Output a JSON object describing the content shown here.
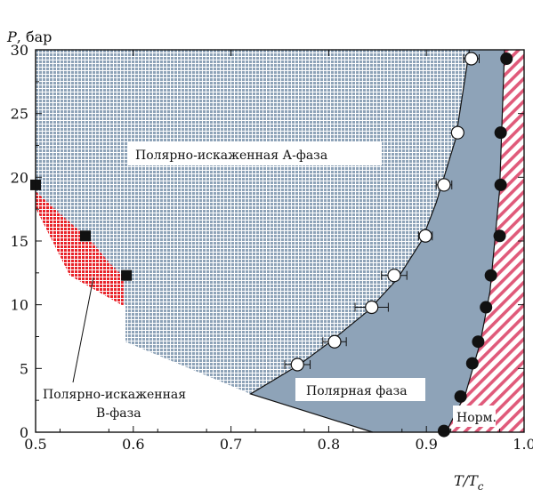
{
  "chart_data": {
    "type": "scatter",
    "axes": {
      "x_label": {
        "symbol": "T/T",
        "subscript": "c"
      },
      "y_label": {
        "symbol": "P",
        "unit": ", бар"
      },
      "xlim": [
        0.5,
        1.0
      ],
      "ylim": [
        0,
        30
      ],
      "x_ticks": [
        "0.5",
        "0.6",
        "0.7",
        "0.8",
        "0.9",
        "1.0"
      ],
      "y_ticks": [
        "0",
        "5",
        "10",
        "15",
        "20",
        "25",
        "30"
      ],
      "grid": false
    },
    "regions": [
      {
        "id": "polar-distorted-a",
        "label": "Полярно-искаженная А-фаза",
        "color": "#8ea3b8",
        "pattern": "grid",
        "boundary": [
          [
            0.5,
            30
          ],
          [
            0.944,
            30
          ],
          [
            0.93,
            23
          ],
          [
            0.91,
            18
          ],
          [
            0.895,
            15
          ],
          [
            0.87,
            12
          ],
          [
            0.84,
            9.5
          ],
          [
            0.8,
            7
          ],
          [
            0.77,
            5.3
          ],
          [
            0.72,
            3.0
          ],
          [
            0.592,
            7.1
          ],
          [
            0.592,
            10
          ],
          [
            0.54,
            12.5
          ],
          [
            0.5,
            17.7
          ]
        ]
      },
      {
        "id": "polar",
        "label": "Полярная фаза",
        "color": "#8ea3b8",
        "pattern": "solid",
        "boundary": [
          [
            0.944,
            30
          ],
          [
            0.93,
            23
          ],
          [
            0.91,
            18
          ],
          [
            0.895,
            15
          ],
          [
            0.87,
            12
          ],
          [
            0.84,
            9.5
          ],
          [
            0.8,
            7
          ],
          [
            0.77,
            5.3
          ],
          [
            0.72,
            3.0
          ],
          [
            0.845,
            0
          ],
          [
            0.92,
            0
          ],
          [
            0.94,
            3
          ],
          [
            0.955,
            7
          ],
          [
            0.965,
            11
          ],
          [
            0.975,
            19
          ],
          [
            0.98,
            30
          ]
        ]
      },
      {
        "id": "polar-distorted-b",
        "label": "Полярно-искаженная\nB-фаза",
        "label_lines": [
          "Полярно-искаженная",
          "B-фаза"
        ],
        "color": "#e8232a",
        "pattern": "crosshatch",
        "boundary": [
          [
            0.5,
            18.9
          ],
          [
            0.5,
            17.6
          ],
          [
            0.535,
            12.3
          ],
          [
            0.59,
            9.9
          ],
          [
            0.59,
            12.2
          ],
          [
            0.574,
            13.4
          ],
          [
            0.556,
            15.1
          ],
          [
            0.533,
            16.6
          ],
          [
            0.5,
            18.9
          ]
        ]
      },
      {
        "id": "normal",
        "label": "Норм.",
        "color": "#e05a7a",
        "pattern": "diagonal",
        "boundary": [
          [
            0.98,
            30
          ],
          [
            0.975,
            19
          ],
          [
            0.965,
            11
          ],
          [
            0.955,
            7
          ],
          [
            0.94,
            3
          ],
          [
            0.92,
            0
          ],
          [
            1.0,
            0
          ],
          [
            1.0,
            30
          ]
        ]
      }
    ],
    "series": [
      {
        "marker": "open-circle",
        "with_error_bars": true,
        "points": [
          [
            0.768,
            5.3
          ],
          [
            0.806,
            7.1
          ],
          [
            0.844,
            9.8
          ],
          [
            0.867,
            12.3
          ],
          [
            0.899,
            15.4
          ],
          [
            0.918,
            19.4
          ],
          [
            0.932,
            23.5
          ],
          [
            0.946,
            29.3
          ]
        ],
        "x_err": [
          0.013,
          0.012,
          0.017,
          0.013,
          0.007,
          0.008,
          0.004,
          0.008
        ]
      },
      {
        "marker": "filled-circle",
        "points": [
          [
            0.918,
            0.1
          ],
          [
            0.935,
            2.8
          ],
          [
            0.947,
            5.4
          ],
          [
            0.953,
            7.1
          ],
          [
            0.961,
            9.8
          ],
          [
            0.966,
            12.3
          ],
          [
            0.975,
            15.4
          ],
          [
            0.976,
            19.4
          ],
          [
            0.976,
            23.5
          ],
          [
            0.982,
            29.3
          ]
        ]
      },
      {
        "marker": "filled-square",
        "points": [
          [
            0.5,
            19.4
          ],
          [
            0.551,
            15.4
          ],
          [
            0.593,
            12.3
          ]
        ]
      }
    ]
  }
}
